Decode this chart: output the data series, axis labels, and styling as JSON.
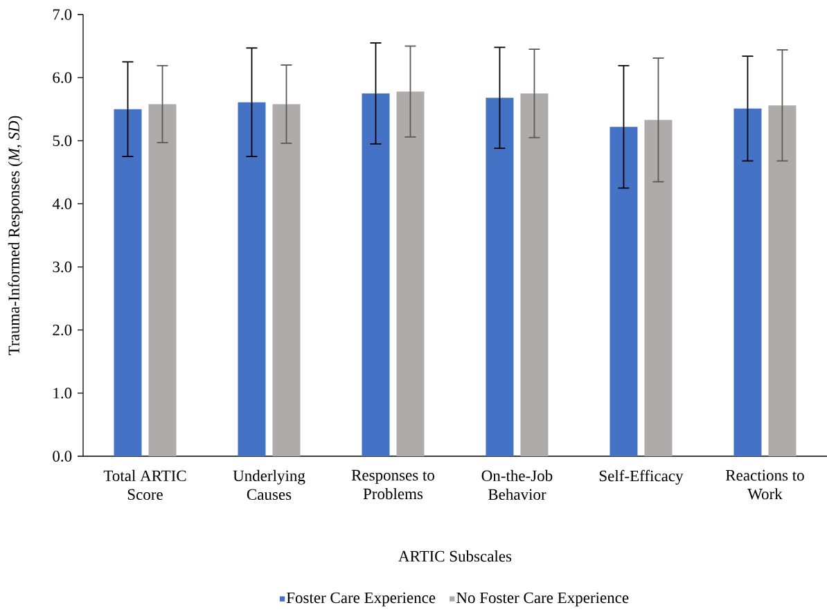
{
  "chart_data": {
    "type": "bar",
    "xlabel": "ARTIC Subscales",
    "ylabel": "Trauma-Informed Responses (*M*, *SD*)",
    "categories": [
      "Total ARTIC Score",
      "Underlying Causes",
      "Responses to Problems",
      "On-the-Job Behavior",
      "Self-Efficacy",
      "Reactions to Work"
    ],
    "series": [
      {
        "name": "Foster Care Experience",
        "color": "#4472c4",
        "values": [
          5.5,
          5.61,
          5.75,
          5.68,
          5.22,
          5.51
        ],
        "errors": [
          0.75,
          0.86,
          0.8,
          0.8,
          0.97,
          0.83
        ]
      },
      {
        "name": "No Foster Care Experience",
        "color": "#afabab",
        "values": [
          5.58,
          5.58,
          5.78,
          5.75,
          5.33,
          5.56
        ],
        "errors": [
          0.61,
          0.62,
          0.72,
          0.7,
          0.98,
          0.88
        ]
      }
    ],
    "ylim": [
      0,
      7
    ],
    "yticks": [
      {
        "value": 0,
        "label": "0.0"
      },
      {
        "value": 1,
        "label": "1.0"
      },
      {
        "value": 2,
        "label": "2.0"
      },
      {
        "value": 3,
        "label": "3.0"
      },
      {
        "value": 4,
        "label": "4.0"
      },
      {
        "value": 5,
        "label": "5.0"
      },
      {
        "value": 6,
        "label": "6.0"
      },
      {
        "value": 7,
        "label": "7.0"
      }
    ],
    "grid": false,
    "legend": "bottom"
  }
}
